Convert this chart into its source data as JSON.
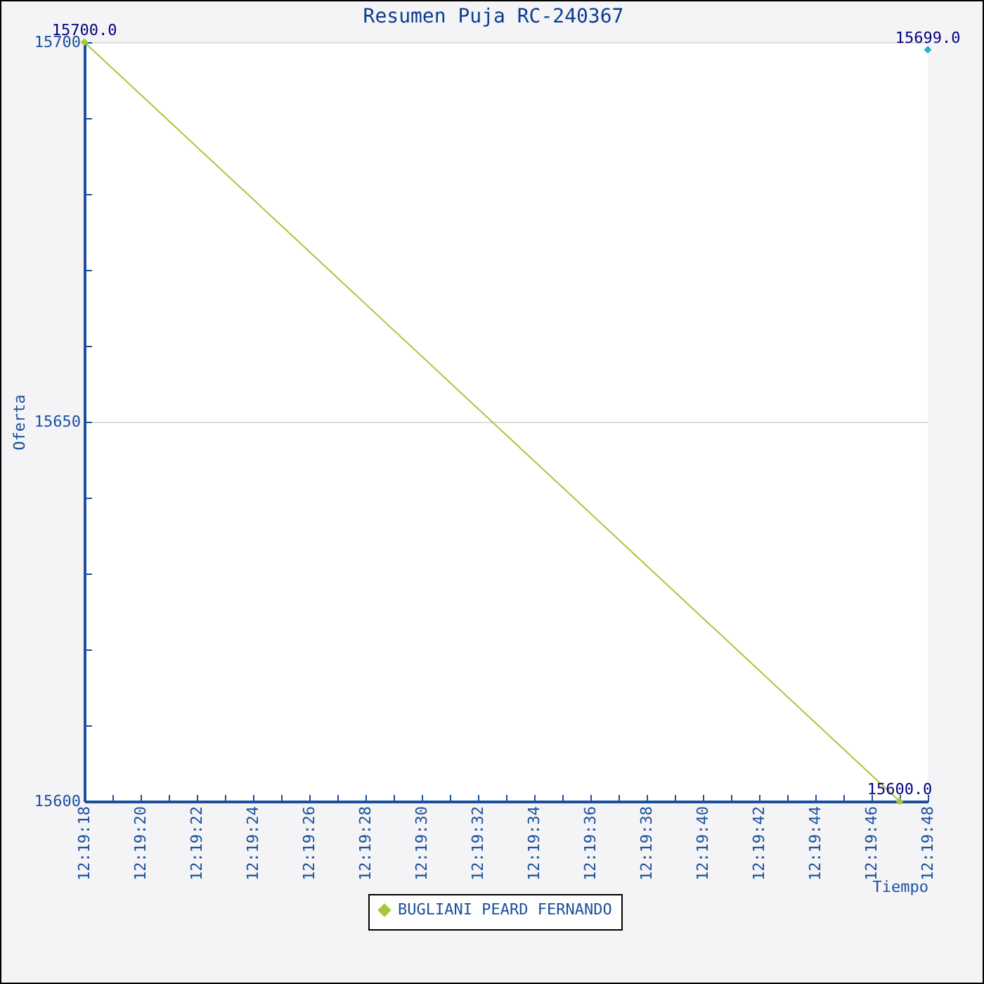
{
  "chart_data": {
    "type": "line",
    "title": "Resumen Puja RC-240367",
    "xlabel": "Tiempo",
    "ylabel": "Oferta",
    "series": [
      {
        "name": "BUGLIANI PEARD FERNANDO",
        "color": "#a6c83c",
        "x": [
          12.3216667,
          12.3297222
        ],
        "values": [
          15700,
          15600
        ],
        "value_labels": [
          "15700.0",
          "15600.0"
        ]
      },
      {
        "color": "#28b0c4",
        "x": [
          12.33
        ],
        "values": [
          15699
        ],
        "value_labels": [
          "15699.0"
        ]
      }
    ],
    "xlim": [
      12.3216667,
      12.33
    ],
    "xticks": [
      {
        "value": 12.3216667,
        "label": "12:19:18"
      },
      {
        "value": 12.3219444,
        "label": null
      },
      {
        "value": 12.3222222,
        "label": "12:19:20"
      },
      {
        "value": 12.3225,
        "label": null
      },
      {
        "value": 12.3227778,
        "label": "12:19:22"
      },
      {
        "value": 12.3230556,
        "label": null
      },
      {
        "value": 12.3233333,
        "label": "12:19:24"
      },
      {
        "value": 12.3236111,
        "label": null
      },
      {
        "value": 12.3238889,
        "label": "12:19:26"
      },
      {
        "value": 12.3241667,
        "label": null
      },
      {
        "value": 12.3244444,
        "label": "12:19:28"
      },
      {
        "value": 12.3247222,
        "label": null
      },
      {
        "value": 12.325,
        "label": "12:19:30"
      },
      {
        "value": 12.3252778,
        "label": null
      },
      {
        "value": 12.3255556,
        "label": "12:19:32"
      },
      {
        "value": 12.3258333,
        "label": null
      },
      {
        "value": 12.3261111,
        "label": "12:19:34"
      },
      {
        "value": 12.3263889,
        "label": null
      },
      {
        "value": 12.3266667,
        "label": "12:19:36"
      },
      {
        "value": 12.3269444,
        "label": null
      },
      {
        "value": 12.3272222,
        "label": "12:19:38"
      },
      {
        "value": 12.3275,
        "label": null
      },
      {
        "value": 12.3277778,
        "label": "12:19:40"
      },
      {
        "value": 12.3280556,
        "label": null
      },
      {
        "value": 12.3283333,
        "label": "12:19:42"
      },
      {
        "value": 12.3286111,
        "label": null
      },
      {
        "value": 12.3288889,
        "label": "12:19:44"
      },
      {
        "value": 12.3291667,
        "label": null
      },
      {
        "value": 12.3294444,
        "label": "12:19:46"
      },
      {
        "value": 12.3297222,
        "label": null
      },
      {
        "value": 12.33,
        "label": "12:19:48"
      }
    ],
    "ylim": [
      15600,
      15700
    ],
    "yticks": [
      15600,
      {
        "value": 15610,
        "label": null
      },
      {
        "value": 15620,
        "label": null
      },
      {
        "value": 15630,
        "label": null
      },
      {
        "value": 15640,
        "label": null
      },
      15650,
      {
        "value": 15660,
        "label": null
      },
      {
        "value": 15670,
        "label": null
      },
      {
        "value": 15680,
        "label": null
      },
      {
        "value": 15690,
        "label": null
      },
      15700
    ],
    "grid": "y",
    "legend": "bottom",
    "marker": "diamond",
    "line_style": "solid"
  }
}
